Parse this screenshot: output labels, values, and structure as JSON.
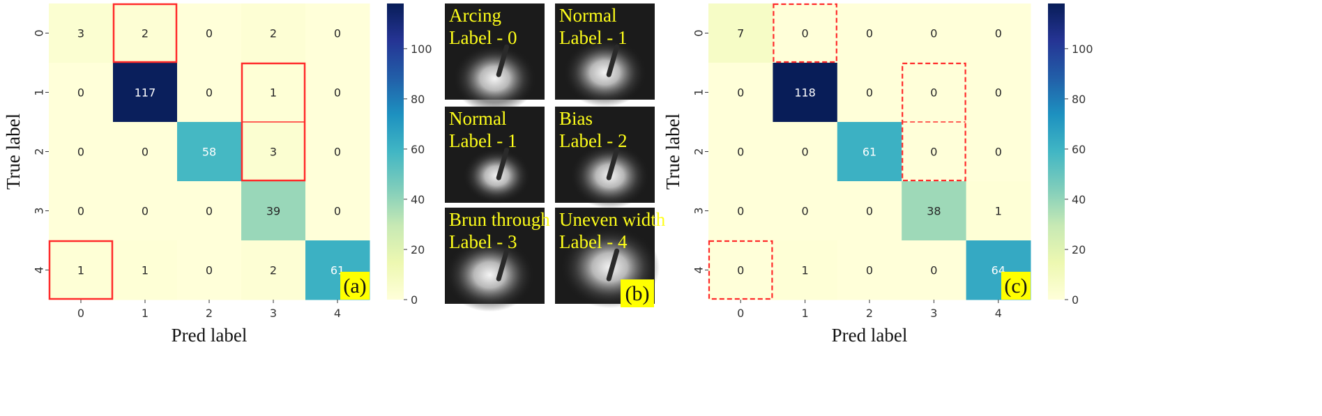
{
  "chart_data": [
    {
      "type": "heatmap",
      "panel_tag": "(a)",
      "xlabel": "Pred label",
      "ylabel": "True label",
      "x_ticks": [
        "0",
        "1",
        "2",
        "3",
        "4"
      ],
      "y_ticks": [
        "0",
        "1",
        "2",
        "3",
        "4"
      ],
      "matrix": [
        [
          3,
          2,
          0,
          2,
          0
        ],
        [
          0,
          117,
          0,
          1,
          0
        ],
        [
          0,
          0,
          58,
          3,
          0
        ],
        [
          0,
          0,
          0,
          39,
          0
        ],
        [
          1,
          1,
          0,
          2,
          61
        ]
      ],
      "colorbar_ticks": [
        "0",
        "20",
        "40",
        "60",
        "80",
        "100"
      ],
      "color_range": [
        0,
        118
      ],
      "colormap": "YlGnBu",
      "highlight_style": "solid red",
      "highlights": [
        {
          "row_start": 0,
          "row_end": 0,
          "col_start": 1,
          "col_end": 1
        },
        {
          "row_start": 1,
          "row_end": 2,
          "col_start": 3,
          "col_end": 3
        },
        {
          "row_start": 4,
          "row_end": 4,
          "col_start": 0,
          "col_end": 0
        }
      ]
    },
    {
      "type": "heatmap",
      "panel_tag": "(c)",
      "xlabel": "Pred label",
      "ylabel": "True label",
      "x_ticks": [
        "0",
        "1",
        "2",
        "3",
        "4"
      ],
      "y_ticks": [
        "0",
        "1",
        "2",
        "3",
        "4"
      ],
      "matrix": [
        [
          7,
          0,
          0,
          0,
          0
        ],
        [
          0,
          118,
          0,
          0,
          0
        ],
        [
          0,
          0,
          61,
          0,
          0
        ],
        [
          0,
          0,
          0,
          38,
          1
        ],
        [
          0,
          1,
          0,
          0,
          64
        ]
      ],
      "colorbar_ticks": [
        "0",
        "20",
        "40",
        "60",
        "80",
        "100"
      ],
      "color_range": [
        0,
        118
      ],
      "colormap": "YlGnBu",
      "highlight_style": "dashed red",
      "highlights": [
        {
          "row_start": 0,
          "row_end": 0,
          "col_start": 1,
          "col_end": 1
        },
        {
          "row_start": 1,
          "row_end": 2,
          "col_start": 3,
          "col_end": 3
        },
        {
          "row_start": 4,
          "row_end": 4,
          "col_start": 0,
          "col_end": 0
        }
      ]
    }
  ],
  "photos": {
    "panel_tag": "(b)",
    "items": [
      {
        "line1": "Arcing",
        "line2": "Label - 0"
      },
      {
        "line1": "Normal",
        "line2": "Label - 1"
      },
      {
        "line1": "Normal",
        "line2": "Label - 1"
      },
      {
        "line1": "Bias",
        "line2": "Label - 2"
      },
      {
        "line1": "Brun through",
        "line2": "Label - 3"
      },
      {
        "line1": "Uneven width",
        "line2": "Label - 4"
      }
    ]
  },
  "colors": {
    "highlight": "#ff2a2a",
    "tag_background": "#ffff00",
    "photo_text": "#ffff1a"
  }
}
